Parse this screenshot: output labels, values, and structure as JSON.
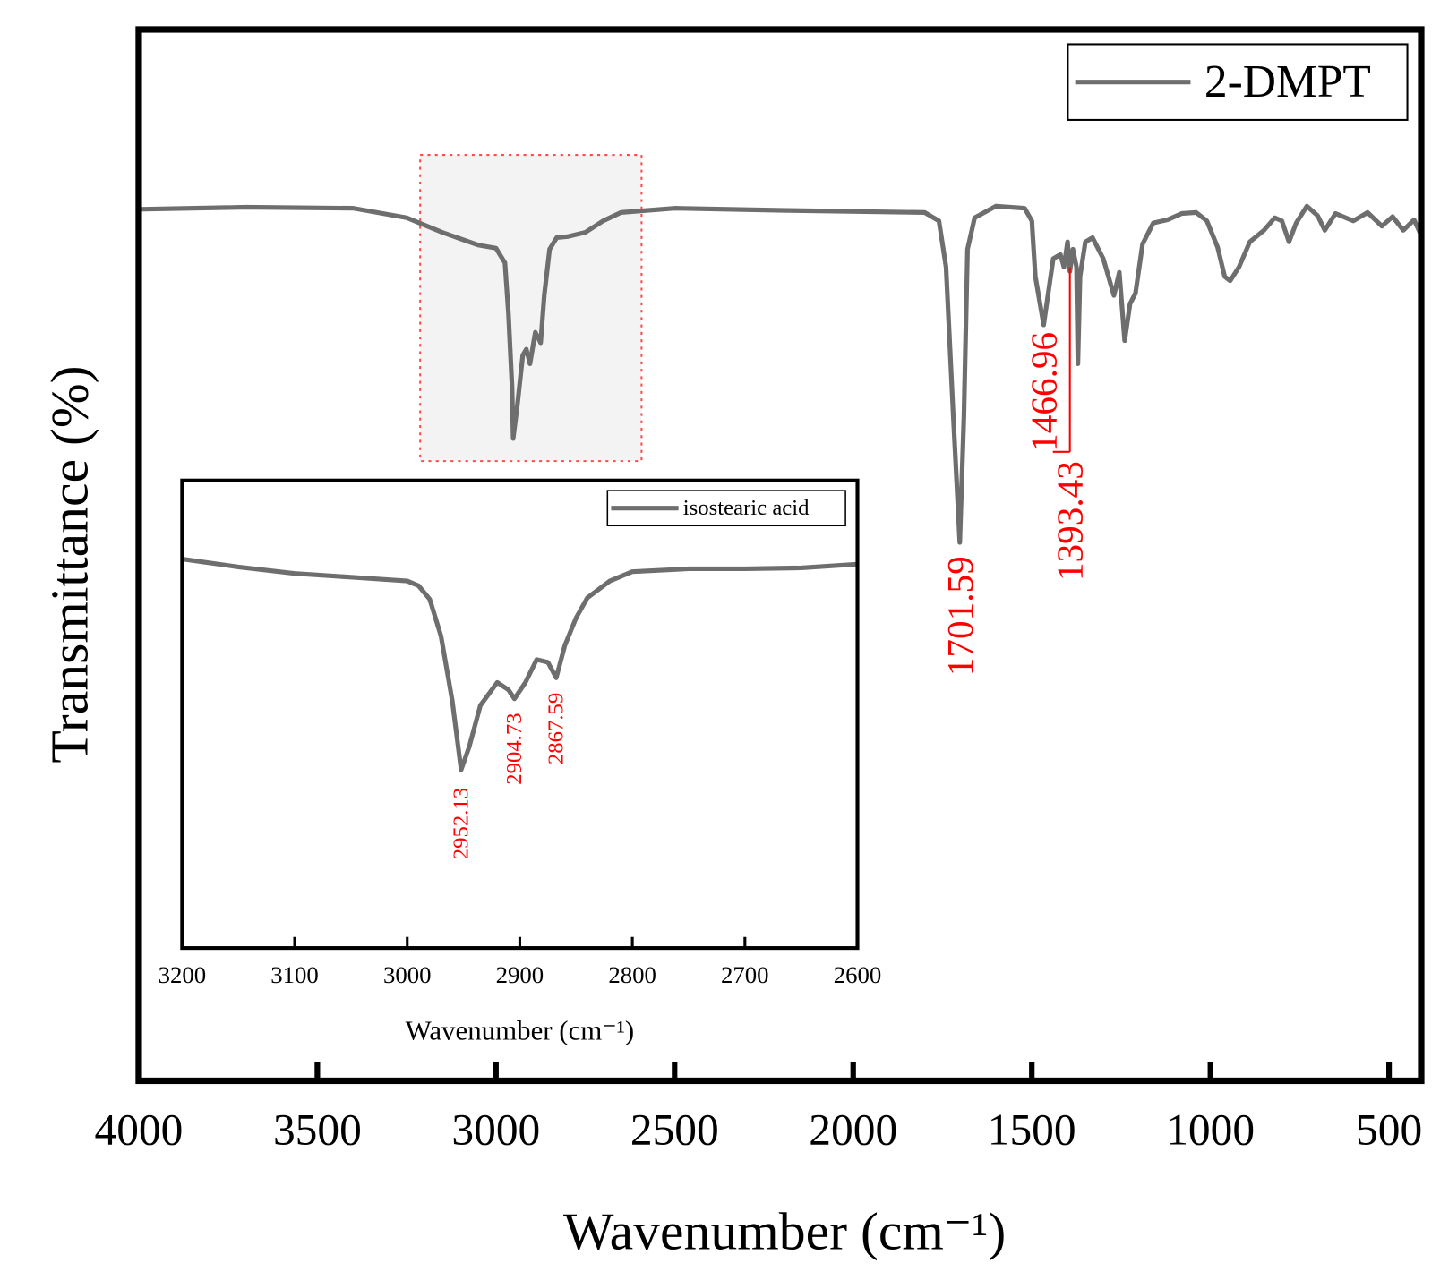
{
  "chart_data": [
    {
      "type": "line",
      "x_label": "Wavenumber (cm⁻¹)",
      "y_label": "Transmittance (%)",
      "xlim": [
        4000,
        410
      ],
      "xticks": [
        4000,
        3500,
        3000,
        2500,
        2000,
        1500,
        1000,
        500
      ],
      "ylim": [
        0,
        100
      ],
      "legend": "top-right",
      "series": [
        {
          "name": "2-DMPT",
          "color": "#6e6e6e",
          "x": [
            4000,
            3700,
            3400,
            3250,
            3150,
            3050,
            3000,
            2975,
            2965,
            2955,
            2952,
            2940,
            2925,
            2915,
            2905,
            2890,
            2875,
            2865,
            2850,
            2830,
            2800,
            2750,
            2700,
            2650,
            2500,
            2200,
            1800,
            1760,
            1740,
            1720,
            1701.59,
            1690,
            1680,
            1660,
            1600,
            1520,
            1500,
            1490,
            1466.96,
            1455,
            1440,
            1420,
            1410,
            1400,
            1393.43,
            1385,
            1375,
            1371,
            1365,
            1350,
            1330,
            1300,
            1270,
            1255,
            1240,
            1225,
            1210,
            1190,
            1160,
            1120,
            1080,
            1040,
            1010,
            980,
            960,
            945,
            920,
            890,
            850,
            820,
            800,
            780,
            760,
            730,
            700,
            680,
            650,
            600,
            560,
            520,
            490,
            460,
            430,
            410
          ],
          "values": [
            82.9,
            83.1,
            83.0,
            82.1,
            80.7,
            79.5,
            79.2,
            77.8,
            73.0,
            66.0,
            61.1,
            64.3,
            69.0,
            69.6,
            68.2,
            71.2,
            70.2,
            74.7,
            79.1,
            80.2,
            80.3,
            80.7,
            81.8,
            82.6,
            83.0,
            82.8,
            82.6,
            81.8,
            77.4,
            63.3,
            51.2,
            63.3,
            79.1,
            82.1,
            83.2,
            83.0,
            81.8,
            76.5,
            71.9,
            74.7,
            78.2,
            78.6,
            77.4,
            79.8,
            77.0,
            79.1,
            77.4,
            68.2,
            76.5,
            79.8,
            80.2,
            78.2,
            74.7,
            76.9,
            70.4,
            73.9,
            74.9,
            79.6,
            81.6,
            81.9,
            82.5,
            82.6,
            81.8,
            79.3,
            76.5,
            76.1,
            77.4,
            79.8,
            80.9,
            82.1,
            81.8,
            79.8,
            81.6,
            83.2,
            82.3,
            80.9,
            82.5,
            81.8,
            82.6,
            81.3,
            82.2,
            80.9,
            81.9,
            80.4
          ]
        }
      ],
      "annotations": [
        {
          "label": "1701.59",
          "x": 1701.59
        },
        {
          "label": "1466.96",
          "x": 1466.96
        },
        {
          "label": "1393.43",
          "x": 1393.43
        }
      ]
    },
    {
      "type": "line",
      "x_label": "Wavenumber (cm⁻¹)",
      "xlim": [
        3200,
        2600
      ],
      "xticks": [
        3200,
        3100,
        3000,
        2900,
        2800,
        2700,
        2600
      ],
      "ylim": [
        0,
        100
      ],
      "legend": "top-right",
      "series": [
        {
          "name": "isostearic acid",
          "color": "#6e6e6e",
          "x": [
            3200,
            3150,
            3100,
            3050,
            3000,
            2990,
            2980,
            2970,
            2960,
            2952.13,
            2945,
            2935,
            2920,
            2910,
            2904.73,
            2895,
            2885,
            2875,
            2867.59,
            2860,
            2850,
            2840,
            2820,
            2800,
            2750,
            2700,
            2650,
            2600
          ],
          "values": [
            83.2,
            81.5,
            80.1,
            79.3,
            78.5,
            77.5,
            74.6,
            66.7,
            52.9,
            38.1,
            43.0,
            51.9,
            56.8,
            55.2,
            53.3,
            56.8,
            61.7,
            61.1,
            57.8,
            64.7,
            70.6,
            74.9,
            78.5,
            80.5,
            81.1,
            81.1,
            81.3,
            82.1
          ]
        }
      ],
      "annotations": [
        {
          "label": "2952.13",
          "x": 2952.13
        },
        {
          "label": "2904.73",
          "x": 2904.73
        },
        {
          "label": "2867.59",
          "x": 2867.59
        }
      ]
    }
  ]
}
